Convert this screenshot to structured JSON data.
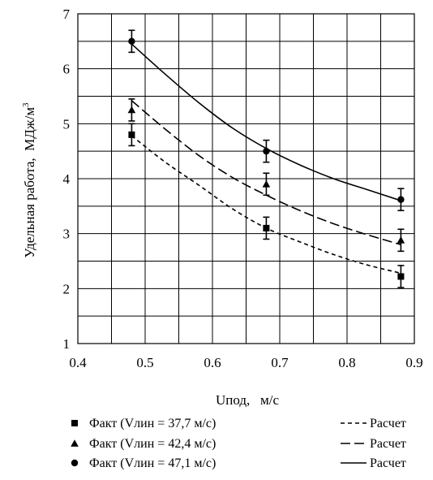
{
  "chart_data": {
    "type": "scatter",
    "xlabel": "Uпод,   м/с",
    "ylabel": "Удельная работа,  МДж/м",
    "ylabel_sup": "3",
    "xlim": [
      0.4,
      0.9
    ],
    "ylim": [
      1,
      7
    ],
    "x_ticks": [
      "0.4",
      "0.5",
      "0.6",
      "0.7",
      "0.8",
      "0.9"
    ],
    "y_ticks": [
      "1",
      "2",
      "3",
      "4",
      "5",
      "6",
      "7"
    ],
    "grid": true,
    "legend_position": "bottom",
    "series": [
      {
        "name": "Факт (Vлин = 37,7 м/с)",
        "marker": "square",
        "x": [
          0.48,
          0.68,
          0.88
        ],
        "y": [
          4.8,
          3.1,
          2.22
        ],
        "err": [
          0.2,
          0.2,
          0.2
        ]
      },
      {
        "name": "Факт (Vлин = 42,4 м/с)",
        "marker": "triangle",
        "x": [
          0.48,
          0.68,
          0.88
        ],
        "y": [
          5.25,
          3.9,
          2.88
        ],
        "err": [
          0.2,
          0.2,
          0.2
        ]
      },
      {
        "name": "Факт (Vлин = 47,1 м/с)",
        "marker": "circle",
        "x": [
          0.48,
          0.68,
          0.88
        ],
        "y": [
          6.5,
          4.5,
          3.62
        ],
        "err": [
          0.2,
          0.2,
          0.2
        ]
      }
    ],
    "fits": [
      {
        "name": "Расчет",
        "style": "short-dash",
        "x": [
          0.48,
          0.53,
          0.58,
          0.63,
          0.68,
          0.73,
          0.78,
          0.83,
          0.88
        ],
        "y": [
          4.78,
          4.3,
          3.88,
          3.45,
          3.1,
          2.85,
          2.62,
          2.43,
          2.28
        ]
      },
      {
        "name": "Расчет",
        "style": "long-dash",
        "x": [
          0.48,
          0.53,
          0.58,
          0.63,
          0.68,
          0.73,
          0.78,
          0.83,
          0.88
        ],
        "y": [
          5.42,
          4.9,
          4.42,
          4.02,
          3.7,
          3.42,
          3.18,
          2.98,
          2.8
        ]
      },
      {
        "name": "Расчет",
        "style": "solid",
        "x": [
          0.48,
          0.53,
          0.58,
          0.63,
          0.68,
          0.73,
          0.78,
          0.83,
          0.88
        ],
        "y": [
          6.45,
          5.9,
          5.38,
          4.92,
          4.55,
          4.25,
          4.0,
          3.8,
          3.6
        ]
      }
    ]
  }
}
